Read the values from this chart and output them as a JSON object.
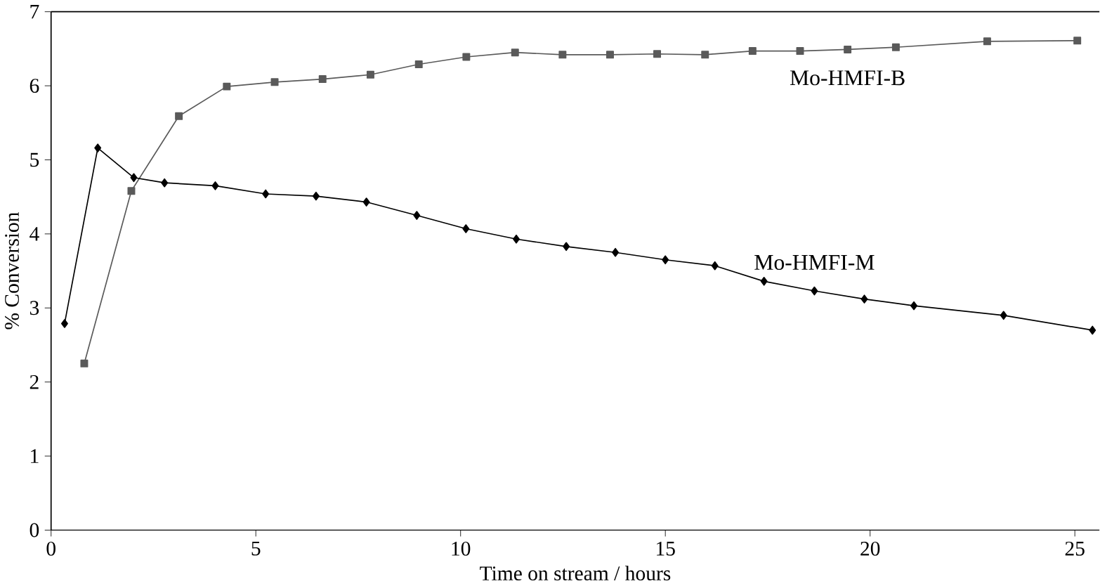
{
  "chart_data": {
    "type": "line",
    "xlabel": "Time on stream / hours",
    "ylabel": "% Conversion",
    "xlim": [
      0,
      25.6
    ],
    "ylim": [
      0,
      7
    ],
    "xticks": [
      0,
      5,
      10,
      15,
      20,
      25
    ],
    "yticks": [
      0,
      1,
      2,
      3,
      4,
      5,
      6,
      7
    ],
    "grid": false,
    "legend": false,
    "series": [
      {
        "name": "Mo-HMFI-B",
        "color": "#5a5a5a",
        "marker": "square",
        "x": [
          0.81,
          1.96,
          3.12,
          4.29,
          5.46,
          6.63,
          7.8,
          8.98,
          10.14,
          11.33,
          12.49,
          13.65,
          14.8,
          15.97,
          17.13,
          18.29,
          19.45,
          20.63,
          22.86,
          25.06
        ],
        "values": [
          2.25,
          4.58,
          5.59,
          5.99,
          6.05,
          6.09,
          6.15,
          6.29,
          6.39,
          6.45,
          6.42,
          6.42,
          6.43,
          6.42,
          6.47,
          6.47,
          6.49,
          6.52,
          6.6,
          6.61
        ]
      },
      {
        "name": "Mo-HMFI-M",
        "color": "#000000",
        "marker": "diamond",
        "x": [
          0.33,
          1.14,
          2.02,
          2.77,
          4.01,
          5.24,
          6.47,
          7.7,
          8.93,
          10.13,
          11.36,
          12.58,
          13.78,
          15.0,
          16.21,
          17.41,
          18.64,
          19.86,
          21.07,
          23.26,
          25.43
        ],
        "values": [
          2.79,
          5.16,
          4.76,
          4.69,
          4.65,
          4.54,
          4.51,
          4.43,
          4.25,
          4.07,
          3.93,
          3.83,
          3.75,
          3.65,
          3.57,
          3.36,
          3.23,
          3.12,
          3.03,
          2.9,
          2.7
        ]
      }
    ]
  }
}
